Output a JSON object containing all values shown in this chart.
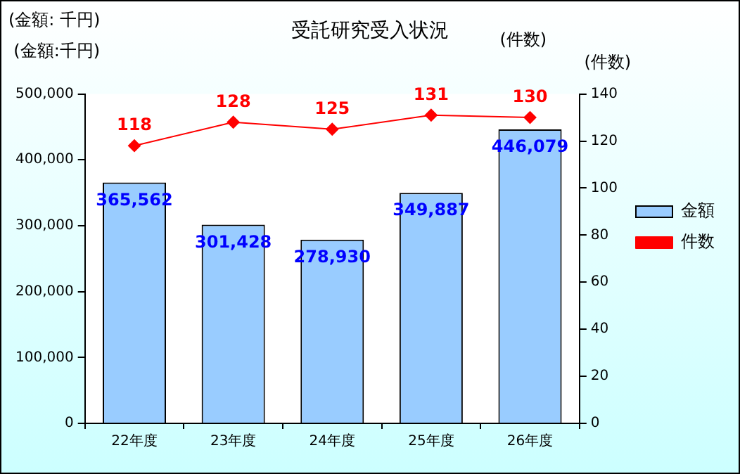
{
  "chart_data": {
    "type": "bar",
    "title": "受託研究受入状況",
    "ylabel": "(金額:千円)",
    "y2label": "(件数)",
    "annotations": [
      "(金額: 千円)",
      "(件数)"
    ],
    "categories": [
      "22年度",
      "23年度",
      "24年度",
      "25年度",
      "26年度"
    ],
    "series": [
      {
        "name": "金額",
        "color": "#99ccff",
        "values": [
          365562,
          301428,
          278930,
          349887,
          446079
        ],
        "value_labels": [
          "365,562",
          "301,428",
          "278,930",
          "349,887",
          "446,079"
        ]
      },
      {
        "name": "件数",
        "type": "line",
        "axis": "y2",
        "color": "#ff0000",
        "marker": "diamond",
        "values": [
          118,
          128,
          125,
          131,
          130
        ]
      }
    ],
    "ylim": [
      0,
      500000
    ],
    "yticks": [
      {
        "value": 0,
        "label": "0"
      },
      {
        "value": 100000,
        "label": "100,000"
      },
      {
        "value": 200000,
        "label": "200,000"
      },
      {
        "value": 300000,
        "label": "300,000"
      },
      {
        "value": 400000,
        "label": "400,000"
      },
      {
        "value": 500000,
        "label": "500,000"
      }
    ],
    "y2lim": [
      0,
      140
    ],
    "y2ticks": [
      0,
      20,
      40,
      60,
      80,
      100,
      120,
      140
    ],
    "data_labels": true,
    "grid": false,
    "legend": "right"
  }
}
